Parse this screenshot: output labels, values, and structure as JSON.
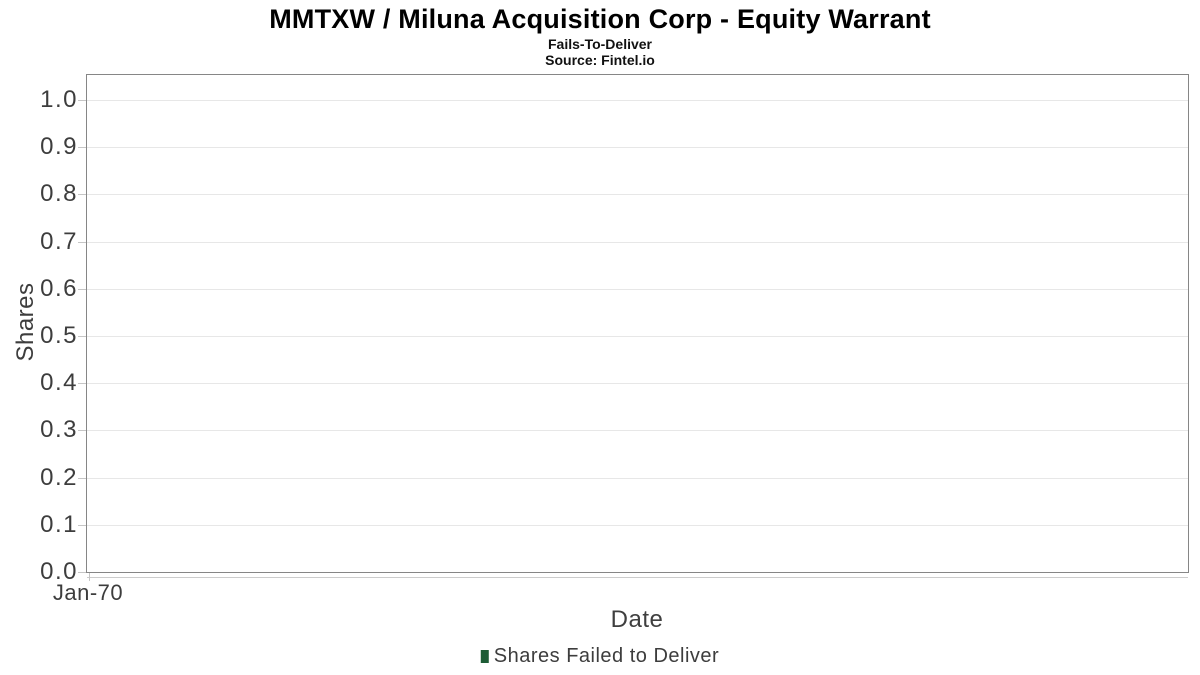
{
  "chart_data": {
    "type": "bar",
    "title": "MMTXW / Miluna Acquisition Corp - Equity Warrant",
    "subtitle": "Fails-To-Deliver",
    "source": "Source: Fintel.io",
    "xlabel": "Date",
    "ylabel": "Shares",
    "xticks": [
      "Jan-70"
    ],
    "yticks": [
      "1.0",
      "0.9",
      "0.8",
      "0.7",
      "0.6",
      "0.5",
      "0.4",
      "0.3",
      "0.2",
      "0.1",
      "0.0"
    ],
    "ylim": [
      0,
      1.053
    ],
    "grid": true,
    "legend_position": "bottom",
    "series": [
      {
        "name": "Shares Failed to Deliver",
        "color": "#1d5c35",
        "x": [],
        "values": []
      }
    ]
  }
}
